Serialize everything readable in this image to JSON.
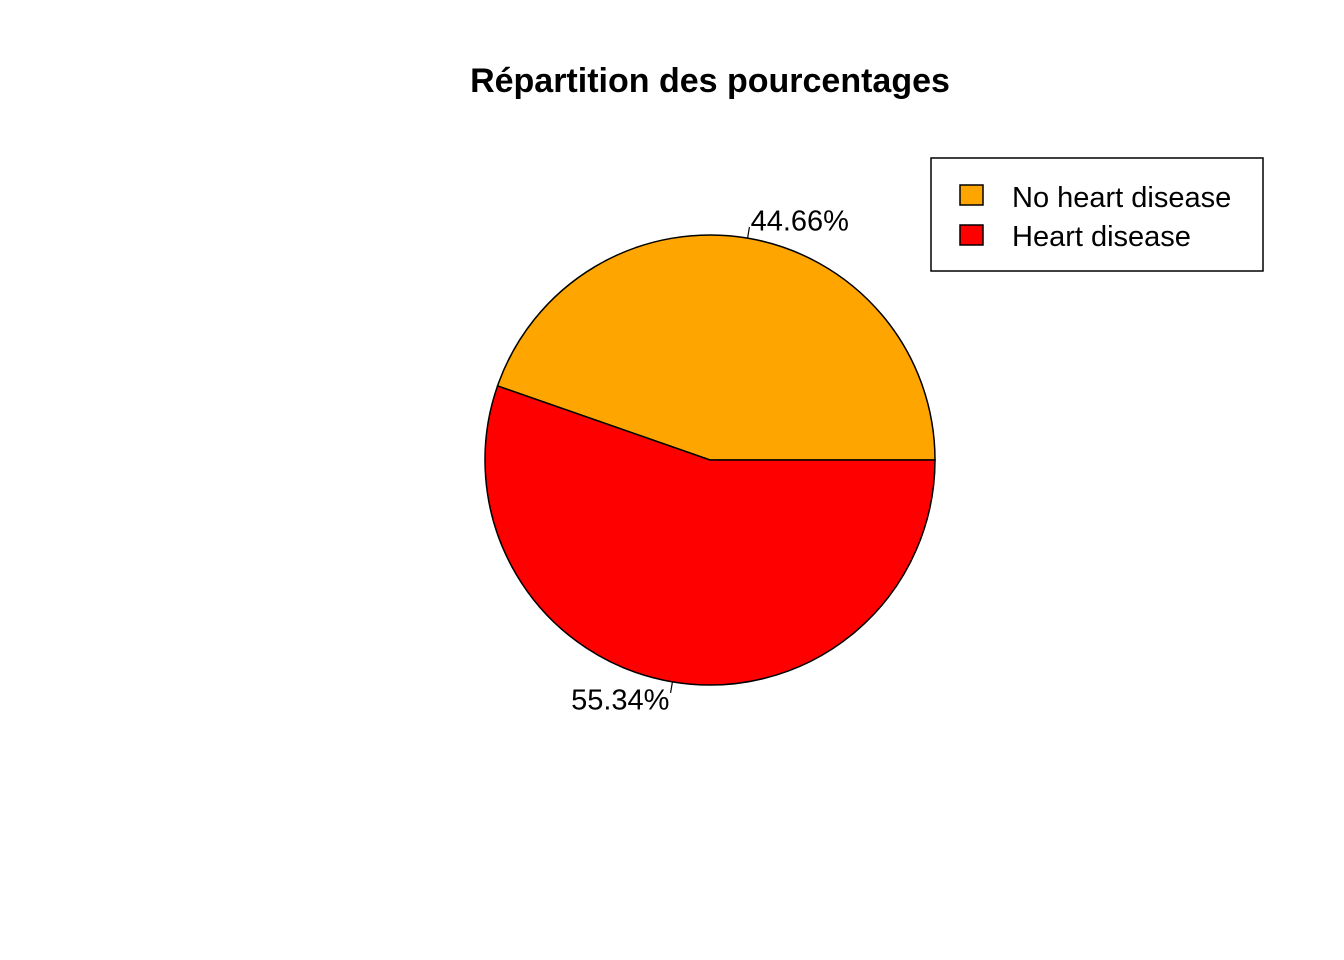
{
  "chart_data": {
    "type": "pie",
    "title": "Répartition des pourcentages",
    "slices": [
      {
        "name": "No heart disease",
        "value": 44.66,
        "label": "44.66%",
        "color": "#FFA500"
      },
      {
        "name": "Heart disease",
        "value": 55.34,
        "label": "55.34%",
        "color": "#FF0000"
      }
    ],
    "start_angle_deg": 0,
    "direction": "counterclockwise",
    "legend": {
      "position": "top-right",
      "entries": [
        "No heart disease",
        "Heart disease"
      ]
    },
    "border_color": "#000000"
  }
}
